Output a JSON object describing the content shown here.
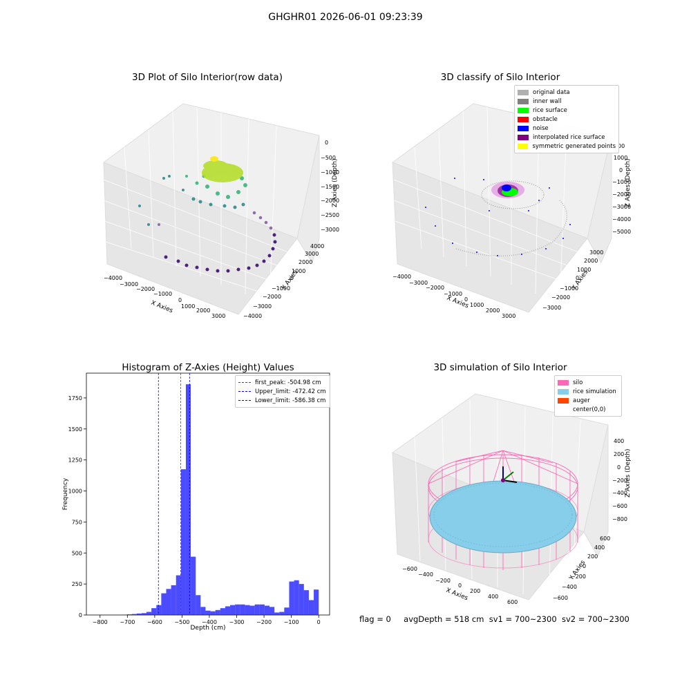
{
  "suptitle": "GHGHR01 2026-06-01 09:23:39",
  "panel_raw": {
    "title": "3D Plot of Silo Interior(row data)",
    "xlabel": "X Axies",
    "ylabel": "Y Axies",
    "zlabel": "Z Axies (Depth)",
    "xticks": [
      "−4000",
      "−3000",
      "−2000",
      "−1000",
      "0",
      "1000",
      "2000",
      "3000"
    ],
    "yticks": [
      "−4000",
      "−3000",
      "−2000",
      "−1000",
      "0",
      "1000",
      "2000",
      "3000",
      "4000"
    ],
    "zticks": [
      "0",
      "−500",
      "−1000",
      "−1500",
      "−2000",
      "−2500",
      "−3000"
    ]
  },
  "panel_classify": {
    "title": "3D classify of Silo Interior",
    "xlabel": "X Axies",
    "ylabel": "Y Axies",
    "zlabel": "Z Axies (Depth)",
    "xticks": [
      "−4000",
      "−3000",
      "−2000",
      "−1000",
      "0",
      "1000",
      "2000",
      "3000"
    ],
    "yticks": [
      "−3000",
      "−2000",
      "−1000",
      "0",
      "1000",
      "2000",
      "3000"
    ],
    "zticks": [
      "1000",
      "0",
      "−1000",
      "−2000",
      "−3000",
      "−4000",
      "−5000"
    ],
    "legend": [
      {
        "label": "original data",
        "color": "#b0b0b0"
      },
      {
        "label": "inner wall",
        "color": "#808080"
      },
      {
        "label": "rice surface",
        "color": "#00ff00"
      },
      {
        "label": "obstacle",
        "color": "#ff0000"
      },
      {
        "label": "noise",
        "color": "#0000ff"
      },
      {
        "label": "interpolated rice surface",
        "color": "#800080"
      },
      {
        "label": "symmetric generated points",
        "color": "#ffff00"
      }
    ],
    "extra_tick": "00"
  },
  "panel_sim": {
    "title": "3D simulation of Silo Interior",
    "xlabel": "X Axies",
    "ylabel": "Y Axies",
    "zlabel": "Z Axies (Depth)",
    "xticks": [
      "−600",
      "−400",
      "−200",
      "0",
      "200",
      "400",
      "600"
    ],
    "yticks": [
      "−600",
      "−400",
      "−200",
      "0",
      "200",
      "400",
      "600"
    ],
    "zticks": [
      "200",
      "0",
      "−200",
      "−400",
      "−600",
      "−800"
    ],
    "legend": [
      {
        "label": "silo",
        "color": "#ff69b4"
      },
      {
        "label": "rice simulation",
        "color": "#87ceeb"
      },
      {
        "label": "auger",
        "color": "#ff4500"
      },
      {
        "label": "center(0,0)",
        "color": ""
      }
    ]
  },
  "footer": {
    "flag": "flag = 0",
    "avg": "avgDepth = 518 cm",
    "sv1": "sv1 = 700~2300",
    "sv2": "sv2 = 700~2300"
  },
  "chart_data": {
    "type": "bar",
    "title": "Histogram of Z-Axies (Height) Values",
    "xlabel": "Depth (cm)",
    "ylabel": "Frequency",
    "xlim": [
      -850,
      40
    ],
    "ylim": [
      0,
      1950
    ],
    "xticks": [
      -800,
      -700,
      -600,
      -500,
      -400,
      -300,
      -200,
      -100,
      0
    ],
    "yticks": [
      0,
      250,
      500,
      750,
      1000,
      1250,
      1500,
      1750
    ],
    "bar_color": "#0000ff",
    "bins": [
      {
        "x0": -720,
        "x1": -702,
        "v": 2
      },
      {
        "x0": -702,
        "x1": -684,
        "v": 5
      },
      {
        "x0": -684,
        "x1": -666,
        "v": 8
      },
      {
        "x0": -666,
        "x1": -648,
        "v": 12
      },
      {
        "x0": -648,
        "x1": -630,
        "v": 15
      },
      {
        "x0": -630,
        "x1": -612,
        "v": 25
      },
      {
        "x0": -612,
        "x1": -594,
        "v": 55
      },
      {
        "x0": -594,
        "x1": -576,
        "v": 80
      },
      {
        "x0": -576,
        "x1": -558,
        "v": 175
      },
      {
        "x0": -558,
        "x1": -540,
        "v": 210
      },
      {
        "x0": -540,
        "x1": -522,
        "v": 240
      },
      {
        "x0": -522,
        "x1": -504,
        "v": 320
      },
      {
        "x0": -504,
        "x1": -486,
        "v": 1175
      },
      {
        "x0": -486,
        "x1": -468,
        "v": 1860
      },
      {
        "x0": -468,
        "x1": -450,
        "v": 470
      },
      {
        "x0": -450,
        "x1": -432,
        "v": 160
      },
      {
        "x0": -432,
        "x1": -414,
        "v": 65
      },
      {
        "x0": -414,
        "x1": -396,
        "v": 35
      },
      {
        "x0": -396,
        "x1": -378,
        "v": 30
      },
      {
        "x0": -378,
        "x1": -360,
        "v": 40
      },
      {
        "x0": -360,
        "x1": -342,
        "v": 55
      },
      {
        "x0": -342,
        "x1": -324,
        "v": 70
      },
      {
        "x0": -324,
        "x1": -306,
        "v": 80
      },
      {
        "x0": -306,
        "x1": -288,
        "v": 85
      },
      {
        "x0": -288,
        "x1": -270,
        "v": 85
      },
      {
        "x0": -270,
        "x1": -252,
        "v": 80
      },
      {
        "x0": -252,
        "x1": -234,
        "v": 75
      },
      {
        "x0": -234,
        "x1": -216,
        "v": 85
      },
      {
        "x0": -216,
        "x1": -198,
        "v": 85
      },
      {
        "x0": -198,
        "x1": -180,
        "v": 75
      },
      {
        "x0": -180,
        "x1": -162,
        "v": 65
      },
      {
        "x0": -162,
        "x1": -144,
        "v": 20
      },
      {
        "x0": -144,
        "x1": -126,
        "v": 25
      },
      {
        "x0": -126,
        "x1": -108,
        "v": 60
      },
      {
        "x0": -108,
        "x1": -90,
        "v": 270
      },
      {
        "x0": -90,
        "x1": -72,
        "v": 280
      },
      {
        "x0": -72,
        "x1": -54,
        "v": 250
      },
      {
        "x0": -54,
        "x1": -36,
        "v": 200
      },
      {
        "x0": -36,
        "x1": -18,
        "v": 120
      },
      {
        "x0": -18,
        "x1": 0,
        "v": 205
      }
    ],
    "vlines": [
      {
        "x": -504.98,
        "color": "#ff0000",
        "label": "first_peak: -504.98 cm"
      },
      {
        "x": -472.42,
        "color": "#0000ff",
        "label": "Upper_limit: -472.42 cm"
      },
      {
        "x": -586.38,
        "color": "#0000ff",
        "label": "Lower_limit: -586.38 cm"
      }
    ]
  }
}
